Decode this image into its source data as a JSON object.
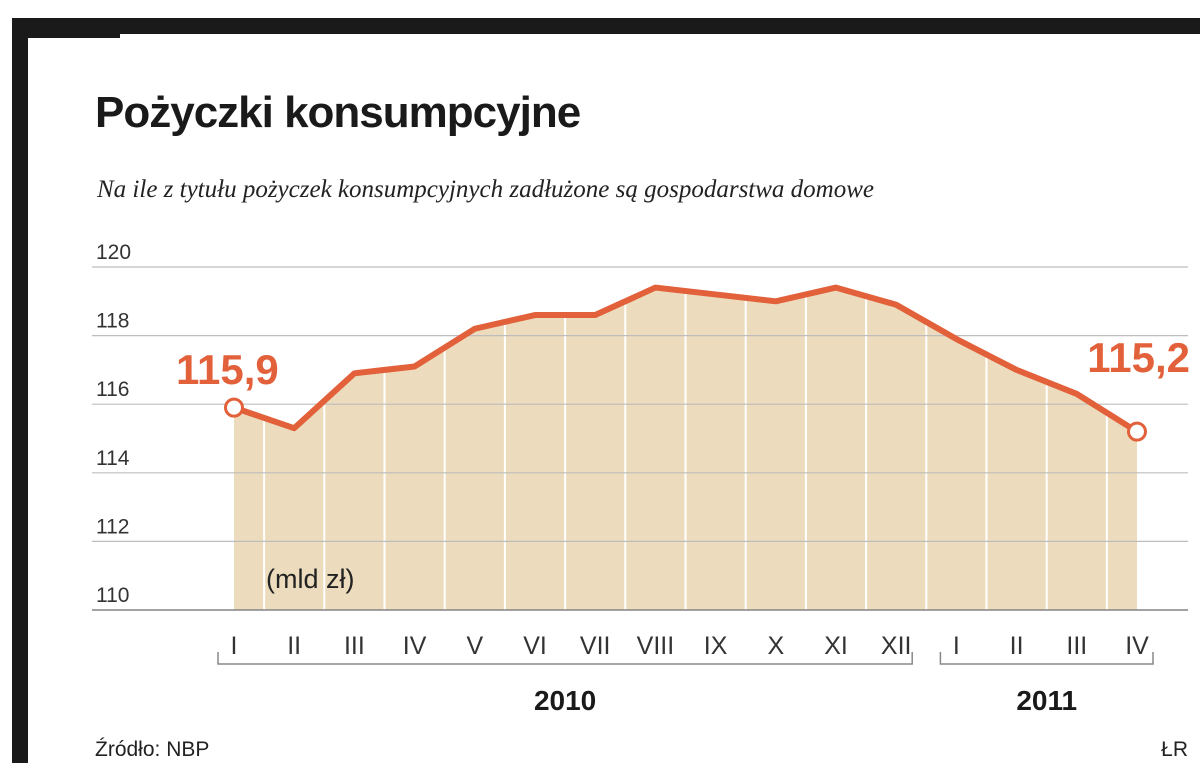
{
  "header": {
    "title": "Pożyczki konsumpcyjne",
    "subtitle": "Na ile z tytułu pożyczek konsumpcyjnych zadłużone są gospodarstwa domowe"
  },
  "footer": {
    "source": "Źródło: NBP",
    "credit": "ŁR"
  },
  "colors": {
    "line": "#e2603a",
    "area": "#ecdcbd",
    "grid": "#bdbdbd",
    "frame": "#1a1a1a"
  },
  "chart_data": {
    "type": "area",
    "title": "Pożyczki konsumpcyjne",
    "unit_label": "(mld zł)",
    "categories": [
      "I",
      "II",
      "III",
      "IV",
      "V",
      "VI",
      "VII",
      "VIII",
      "IX",
      "X",
      "XI",
      "XII",
      "I",
      "II",
      "III",
      "IV"
    ],
    "year_groups": [
      {
        "label": "2010",
        "from": 0,
        "to": 11
      },
      {
        "label": "2011",
        "from": 12,
        "to": 15
      }
    ],
    "values": [
      115.9,
      115.3,
      116.9,
      117.1,
      118.2,
      118.6,
      118.6,
      119.4,
      119.2,
      119.0,
      119.4,
      118.9,
      117.9,
      117.0,
      116.3,
      115.2
    ],
    "yticks": [
      110,
      112,
      114,
      116,
      118,
      120
    ],
    "ylim": [
      110,
      120
    ],
    "grid": true,
    "data_labels": [
      {
        "index": 0,
        "text": "115,9"
      },
      {
        "index": 15,
        "text": "115,2"
      }
    ]
  }
}
